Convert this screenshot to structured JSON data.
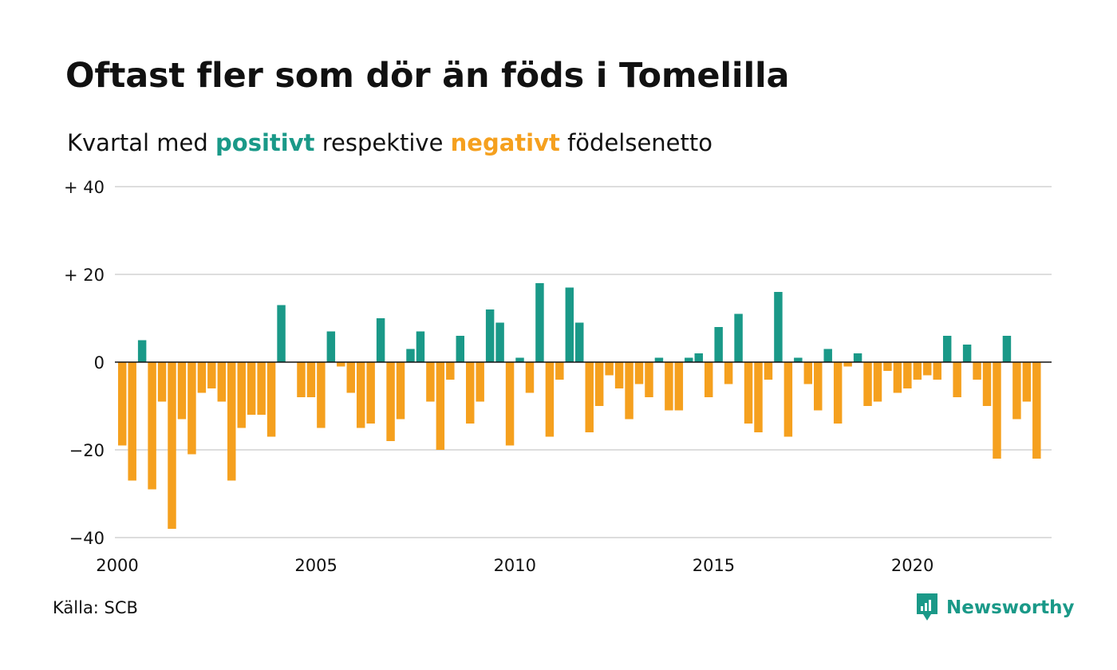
{
  "title": "Oftast fler som dör än föds i Tomelilla",
  "subtitle": {
    "before": "Kvartal med",
    "positive_word": "positivt",
    "middle": "respektive",
    "negative_word": "negativt",
    "after": "födelsenetto"
  },
  "source": "Källa: SCB",
  "brand": "Newsworthy",
  "colors": {
    "positive": "#1a9988",
    "negative": "#f5a01e",
    "grid": "#dddddd",
    "zero_line": "#111111"
  },
  "chart_data": {
    "type": "bar",
    "title": "Oftast fler som dör än föds i Tomelilla",
    "subtitle": "Kvartal med positivt respektive negativt födelsenetto",
    "xlabel": "",
    "ylabel": "",
    "ylim": [
      -40,
      40
    ],
    "xlim": [
      2000,
      2023.5
    ],
    "y_ticks": [
      {
        "value": 40,
        "label": "+ 40"
      },
      {
        "value": 20,
        "label": "+ 20"
      },
      {
        "value": 0,
        "label": "0"
      },
      {
        "value": -20,
        "label": "−20"
      },
      {
        "value": -40,
        "label": "−40"
      }
    ],
    "x_ticks": [
      {
        "value": 2000,
        "label": "2000"
      },
      {
        "value": 2005,
        "label": "2005"
      },
      {
        "value": 2010,
        "label": "2010"
      },
      {
        "value": 2015,
        "label": "2015"
      },
      {
        "value": 2020,
        "label": "2020"
      }
    ],
    "grid": true,
    "x_start_year": 2000,
    "periods_per_year": 4,
    "values": [
      -19,
      -27,
      5,
      -29,
      -9,
      -38,
      -13,
      -21,
      -7,
      -6,
      -9,
      -27,
      -15,
      -12,
      -12,
      -17,
      13,
      0,
      -8,
      -8,
      -15,
      7,
      -1,
      -7,
      -15,
      -14,
      10,
      -18,
      -13,
      3,
      7,
      -9,
      -20,
      -4,
      6,
      -14,
      -9,
      12,
      9,
      -19,
      1,
      -7,
      18,
      -17,
      -4,
      17,
      9,
      -16,
      -10,
      -3,
      -6,
      -13,
      -5,
      -8,
      1,
      -11,
      -11,
      1,
      2,
      -8,
      8,
      -5,
      11,
      -14,
      -16,
      -4,
      16,
      -17,
      1,
      -5,
      -11,
      3,
      -14,
      -1,
      2,
      -10,
      -9,
      -2,
      -7,
      -6,
      -4,
      -3,
      -4,
      6,
      -8,
      4,
      -4,
      -10,
      -22,
      6,
      -13,
      -9,
      -22
    ]
  }
}
